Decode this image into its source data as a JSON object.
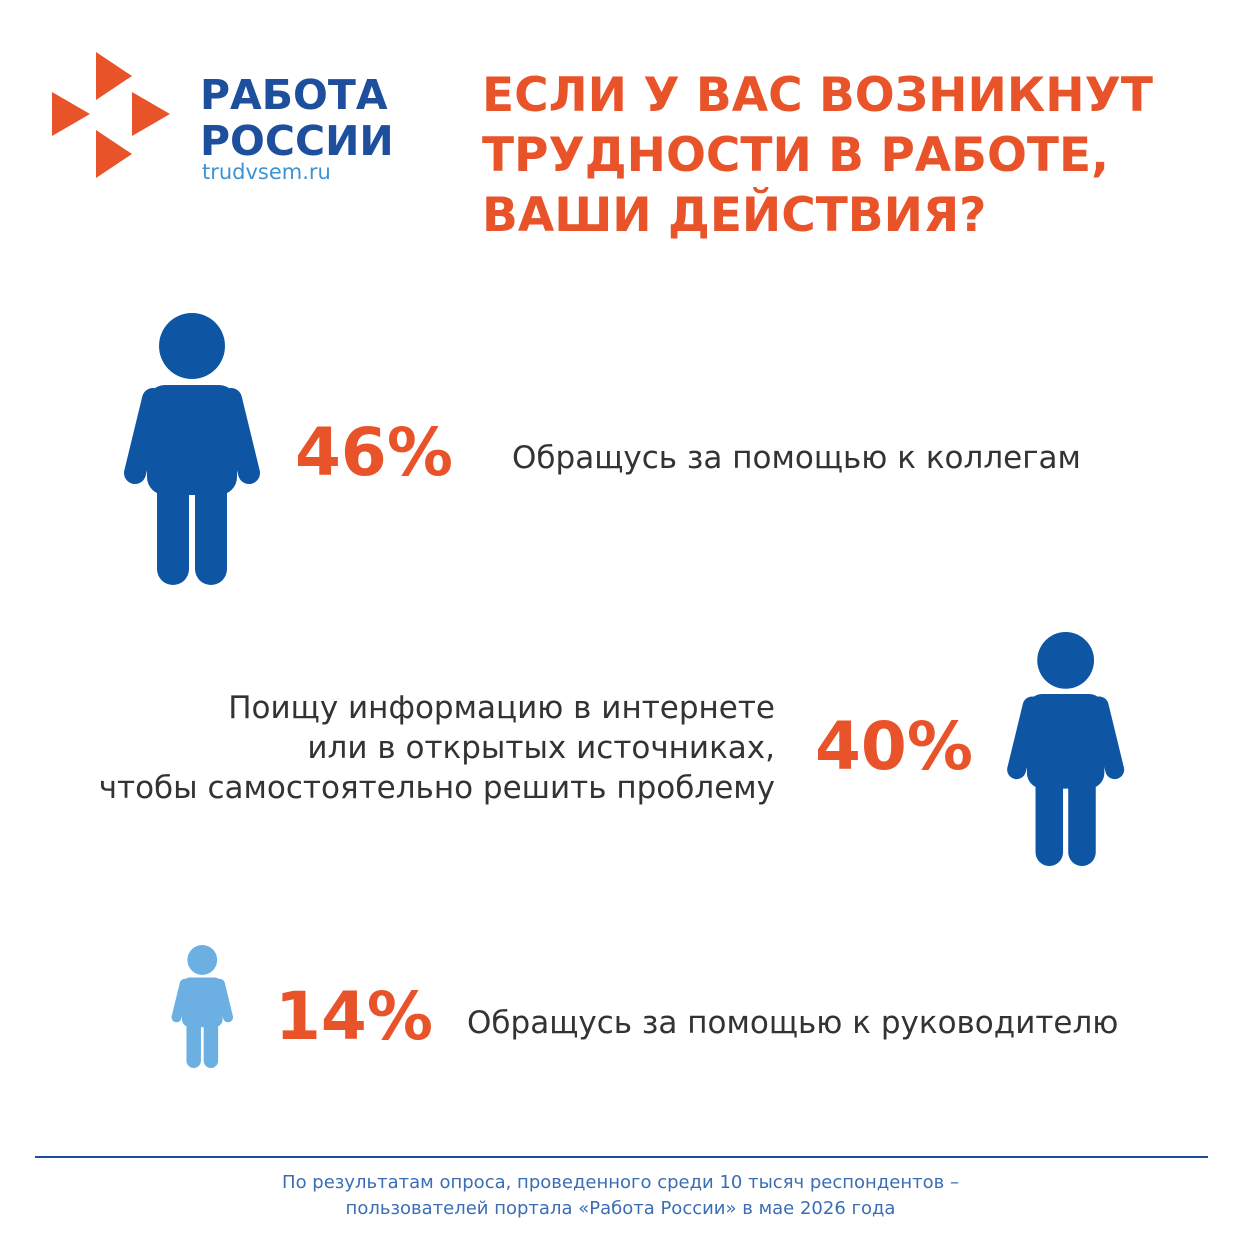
{
  "logo": {
    "line1": "РАБОТА",
    "line2": "РОССИИ",
    "site": "trudvsem.ru"
  },
  "chart_data": {
    "type": "pictogram",
    "title": "ЕСЛИ У ВАС ВОЗНИКНУТ\nТРУДНОСТИ В РАБОТЕ,\nВАШИ ДЕЙСТВИЯ?",
    "categories": [
      "Обращусь за помощью к коллегам",
      "Поищу информацию в интернете\nили в открытых источниках,\nчтобы самостоятельно решить проблему",
      "Обращусь за помощью к руководителю"
    ],
    "values": [
      46,
      40,
      14
    ],
    "value_labels": [
      "46%",
      "40%",
      "14%"
    ],
    "colors": [
      "#0e56a4",
      "#0e56a4",
      "#6cb0e3"
    ],
    "footnote": "По результатам опроса, проведенного среди 10 тысяч респондентов –\nпользователей портала «Работа России» в мае 2026 года"
  }
}
